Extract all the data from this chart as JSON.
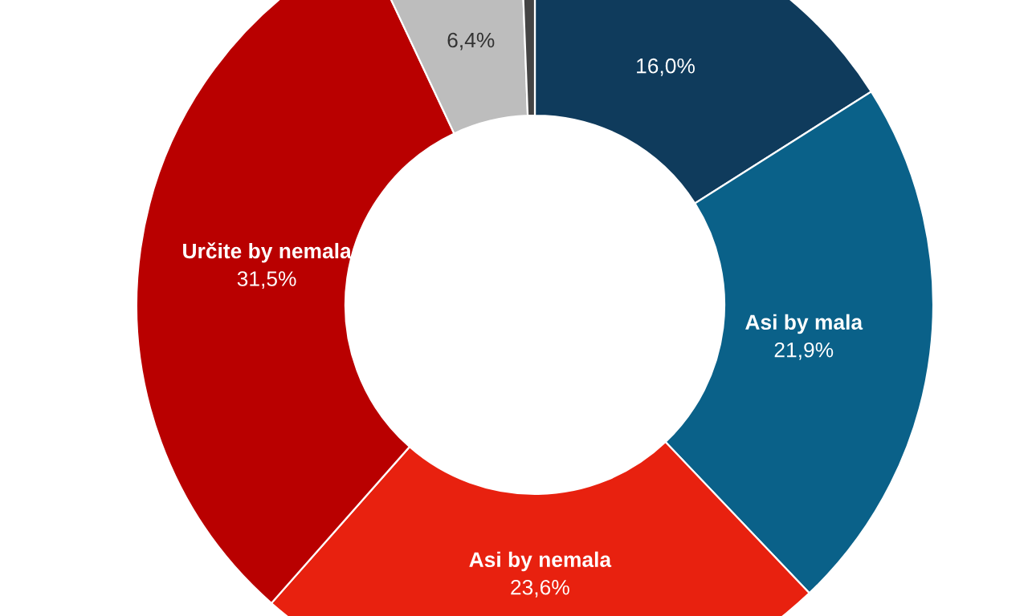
{
  "chart_data": {
    "type": "donut",
    "categories": [
      null,
      "Asi by mala",
      "Asi by nemala",
      "Určite by nemala",
      null,
      null
    ],
    "values": [
      16.0,
      21.9,
      23.6,
      31.5,
      6.4,
      0.6
    ],
    "colors": [
      "#0f3b5c",
      "#0a6189",
      "#e8210f",
      "#b90000",
      "#bdbdbd",
      "#444444"
    ],
    "value_labels": [
      "16,0%",
      "21,9%",
      "23,6%",
      "31,5%",
      "6,4%",
      null
    ]
  }
}
